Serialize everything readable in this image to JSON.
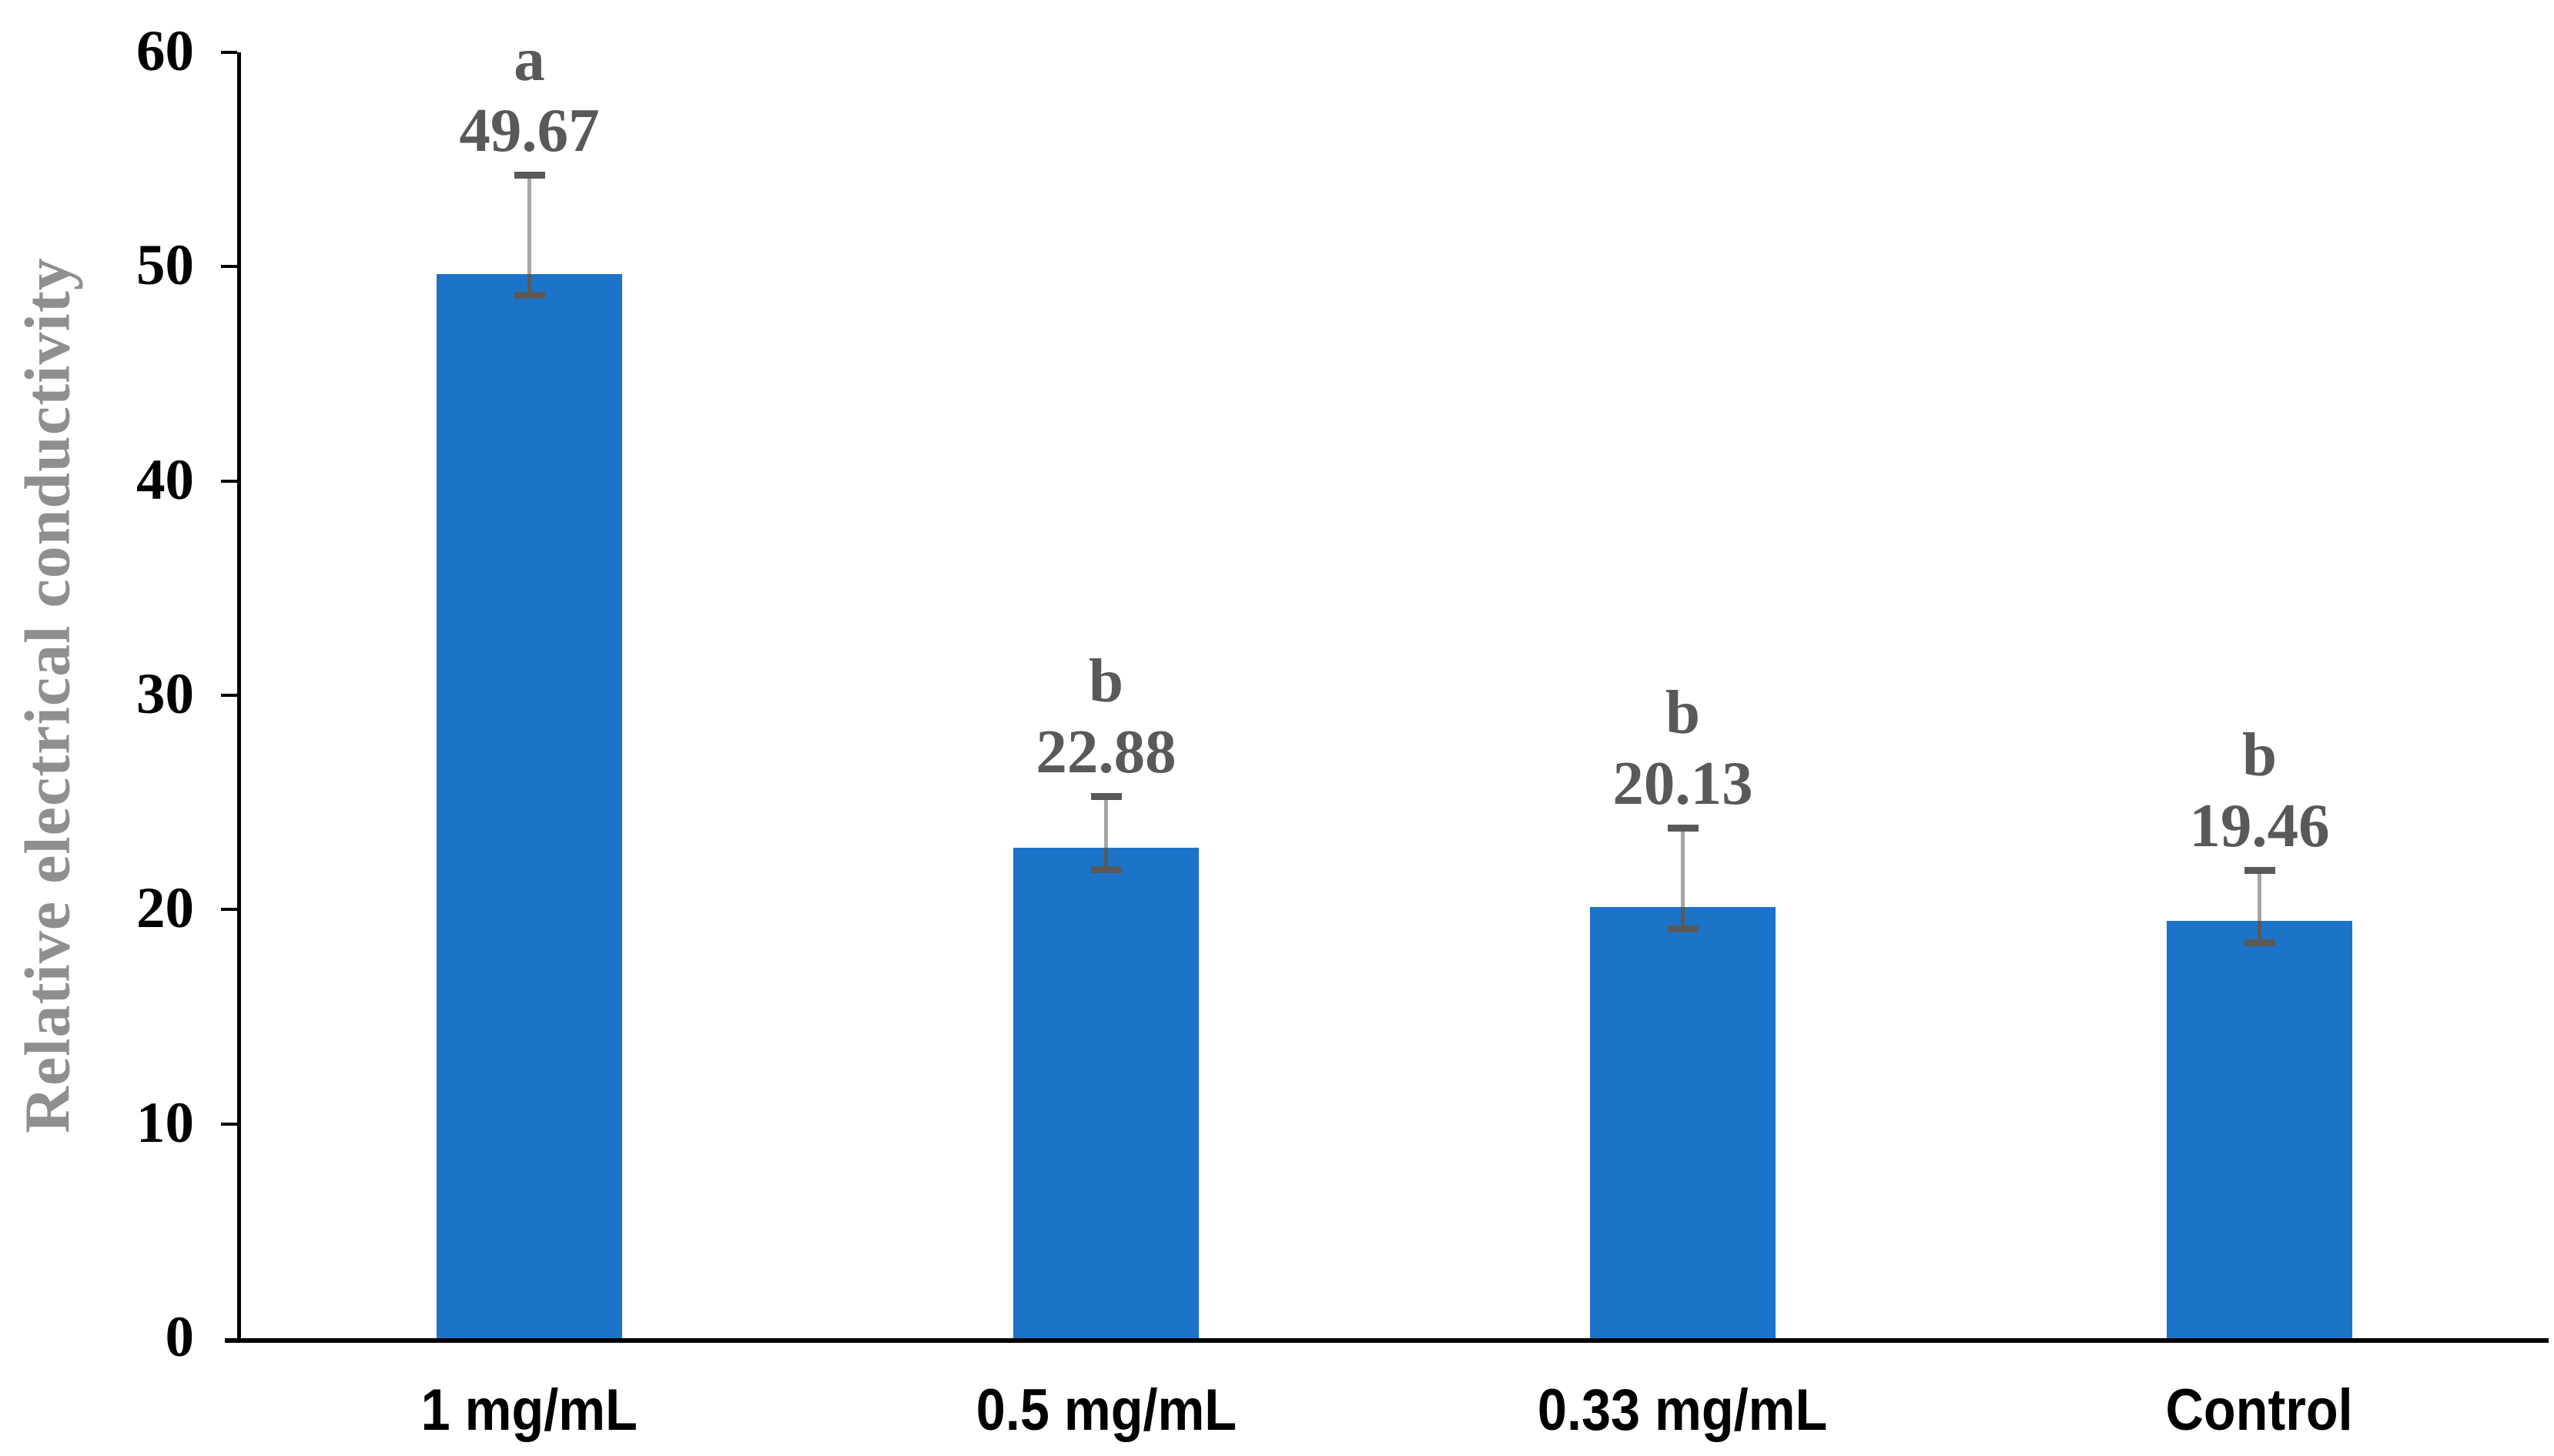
{
  "chart_data": {
    "type": "bar",
    "title": "",
    "xlabel": "",
    "ylabel": "Relative electrical conductivity",
    "ylim": [
      0,
      60
    ],
    "ytick_step": 10,
    "yticks": [
      0,
      10,
      20,
      30,
      40,
      50,
      60
    ],
    "grid": "off",
    "legend": "none",
    "categories": [
      "1 mg/mL",
      "0.5 mg/mL",
      "0.33 mg/mL",
      "Control"
    ],
    "series": [
      {
        "name": "Relative electrical conductivity",
        "values": [
          49.67,
          22.88,
          20.13,
          19.46
        ],
        "value_labels": [
          "49.67",
          "22.88",
          "20.13",
          "19.46"
        ],
        "significance_letters": [
          "a",
          "b",
          "b",
          "b"
        ],
        "error_up": [
          4.6,
          2.4,
          3.7,
          2.4
        ],
        "error_down": [
          1.0,
          1.0,
          1.0,
          1.0
        ]
      }
    ],
    "colors": {
      "bar": "#1C74C8",
      "axis": "#000000",
      "tick_label": "#000000",
      "category_label": "#000000",
      "value_label": "#595959",
      "significance_letter": "#595959",
      "y_axis_title": "#8F8F8F",
      "error_bar_upper_line": "#A6A6A6",
      "error_bar_lower_line": "#595959",
      "error_bar_cap": "#595959"
    }
  }
}
